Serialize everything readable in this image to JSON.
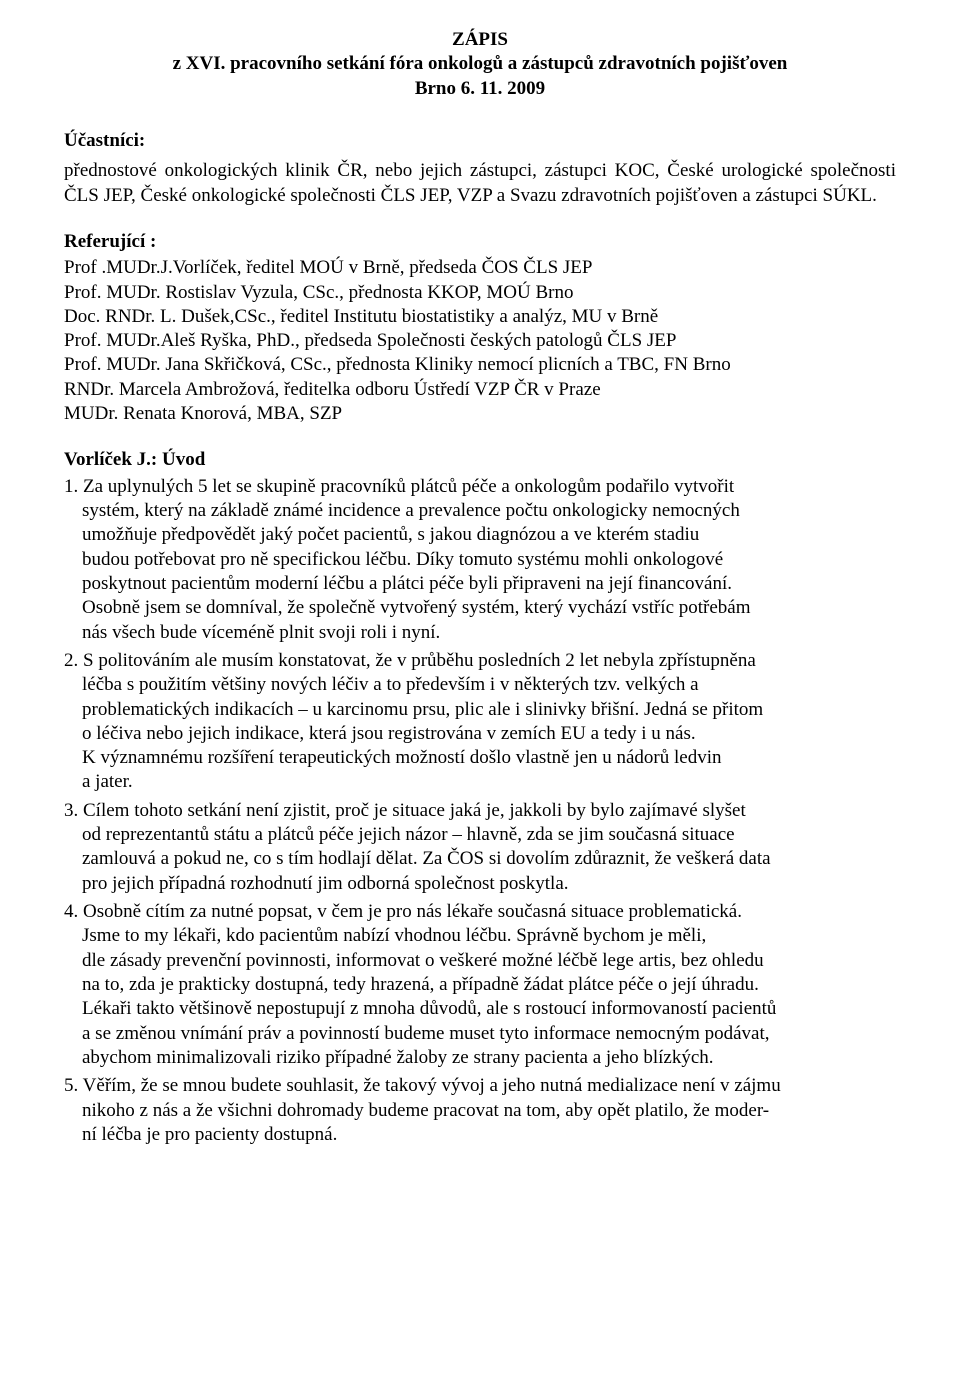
{
  "title": {
    "line1": "ZÁPIS",
    "line2": "z XVI. pracovního setkání fóra onkologů a zástupců zdravotních pojišťoven",
    "line3": "Brno 6. 11. 2009"
  },
  "ucastnici": {
    "heading": "Účastníci:",
    "text": "přednostové onkologických klinik ČR, nebo jejich zástupci, zástupci KOC,  České urologické společnosti ČLS JEP, České onkologické společnosti ČLS JEP, VZP a Svazu zdravotních pojišťoven a zástupci SÚKL."
  },
  "referujici": {
    "heading": "Referující :",
    "lines": [
      "Prof .MUDr.J.Vorlíček, ředitel MOÚ v Brně, předseda ČOS ČLS JEP",
      "Prof. MUDr. Rostislav Vyzula, CSc., přednosta KKOP, MOÚ Brno",
      "Doc. RNDr. L. Dušek,CSc., ředitel Institutu biostatistiky a analýz, MU v Brně",
      "Prof. MUDr.Aleš Ryška, PhD., předseda Společnosti českých patologů ČLS JEP",
      "Prof. MUDr. Jana Skřičková, CSc., přednosta Kliniky nemocí plicních a TBC, FN Brno",
      "RNDr. Marcela Ambrožová, ředitelka odboru Ústředí VZP ČR v Praze",
      "MUDr. Renata Knorová, MBA, SZP"
    ]
  },
  "vorlicek": {
    "heading": "Vorlíček J.: Úvod",
    "items": [
      {
        "num": "1.",
        "lines": [
          "Za uplynulých 5 let se skupině pracovníků plátců péče a onkologům podařilo vytvořit",
          "systém, který na základě známé incidence a prevalence počtu onkologicky nemocných",
          "umožňuje předpovědět jaký počet pacientů, s jakou diagnózou a ve kterém stadiu",
          "budou potřebovat pro ně specifickou léčbu. Díky tomuto systému mohli onkologové",
          "poskytnout pacientům moderní léčbu a plátci péče byli připraveni na její financování.",
          "Osobně jsem se domníval, že společně vytvořený systém, který vychází vstříc potřebám",
          "nás všech bude víceméně plnit svoji roli i nyní."
        ]
      },
      {
        "num": "2.",
        "lines": [
          "S politováním ale musím konstatovat, že v průběhu posledních 2 let nebyla zpřístupněna",
          "léčba s použitím většiny nových léčiv a to především i v některých tzv. velkých a",
          "problematických indikacích – u karcinomu prsu, plic ale i slinivky břišní. Jedná se přitom",
          "o léčiva nebo jejich indikace, která jsou registrována v zemích EU a tedy i u nás.",
          "K významnému rozšíření terapeutických možností došlo vlastně jen u nádorů ledvin",
          "a jater."
        ]
      },
      {
        "num": "3.",
        "lines": [
          "Cílem tohoto setkání není zjistit, proč je situace jaká je, jakkoli by bylo zajímavé slyšet",
          "od reprezentantů státu a plátců péče jejich názor – hlavně, zda se jim současná situace",
          "zamlouvá a pokud ne, co s tím hodlají dělat. Za ČOS si dovolím zdůraznit, že veškerá data",
          "pro jejich případná rozhodnutí jim odborná společnost poskytla."
        ]
      },
      {
        "num": "4.",
        "lines": [
          "Osobně cítím za nutné popsat, v čem je pro nás lékaře současná situace problematická.",
          "Jsme to my lékaři, kdo pacientům nabízí vhodnou léčbu. Správně bychom je měli,",
          "dle zásady prevenční povinnosti, informovat o veškeré možné léčbě lege artis, bez ohledu",
          "na to, zda je prakticky dostupná, tedy hrazená, a případně žádat plátce péče o její úhradu.",
          "Lékaři takto většinově nepostupují z mnoha důvodů, ale s rostoucí informovaností pacientů",
          "a se změnou vnímání práv a povinností budeme muset tyto informace nemocným podávat,",
          "abychom minimalizovali riziko případné žaloby ze strany pacienta a jeho blízkých."
        ]
      },
      {
        "num": "5.",
        "lines": [
          "Věřím, že se mnou budete souhlasit, že takový vývoj a jeho nutná medializace není v zájmu",
          "nikoho z nás a že všichni dohromady budeme pracovat na tom, aby opět platilo, že moder-",
          "ní léčba je pro pacienty dostupná."
        ]
      }
    ]
  }
}
